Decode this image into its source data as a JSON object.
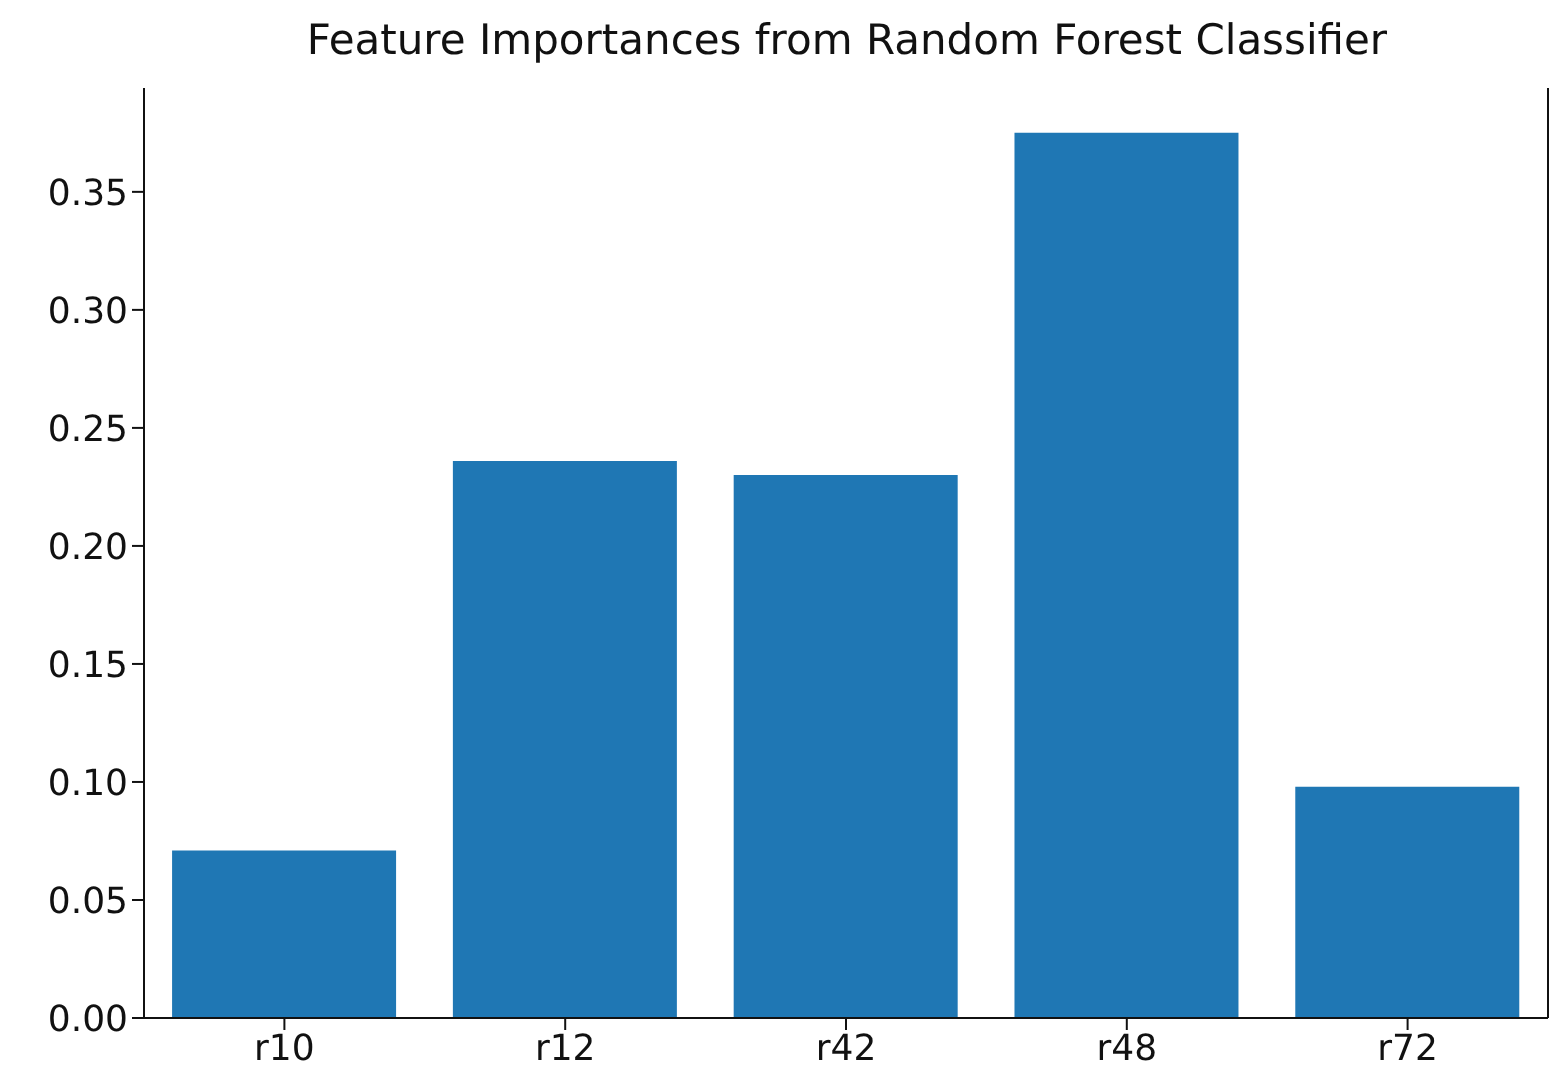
{
  "chart_data": {
    "type": "bar",
    "title": "Feature Importances from Random Forest Classifier",
    "categories": [
      "r10",
      "r12",
      "r42",
      "r48",
      "r72"
    ],
    "values": [
      0.071,
      0.236,
      0.23,
      0.375,
      0.098
    ],
    "color": "#1f77b4",
    "ylim": [
      0,
      0.394
    ],
    "yticks": [
      {
        "value": 0,
        "label": "0.00"
      },
      {
        "value": 0.05,
        "label": "0.05"
      },
      {
        "value": 0.1,
        "label": "0.10"
      },
      {
        "value": 0.15,
        "label": "0.15"
      },
      {
        "value": 0.2,
        "label": "0.20"
      },
      {
        "value": 0.25,
        "label": "0.25"
      },
      {
        "value": 0.3,
        "label": "0.30"
      },
      {
        "value": 0.35,
        "label": "0.35"
      }
    ],
    "grid": false,
    "legend": false
  }
}
